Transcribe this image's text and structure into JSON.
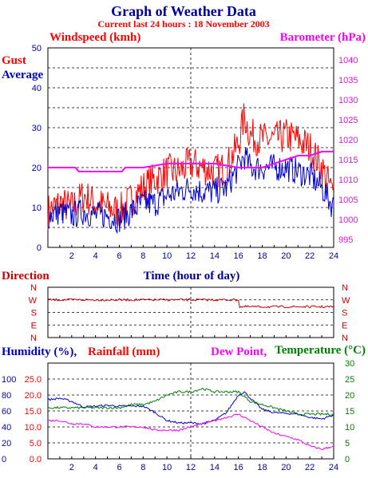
{
  "title": "Graph of Weather Data",
  "subtitle": "Current last 24 hours : 18 November 2003",
  "colors": {
    "red": "#ff0000",
    "blue": "#0000cc",
    "magenta": "#ff00ff",
    "green": "#008000",
    "darkblue": "#000099"
  },
  "chart_data": [
    {
      "type": "line",
      "title": "",
      "labels": {
        "left": "Windspeed (kmh)",
        "right": "Barometer (hPa)",
        "gust": "Gust",
        "average": "Average",
        "x": "Time (hour of day)"
      },
      "xlim": [
        0,
        24
      ],
      "ylim": [
        0,
        50
      ],
      "y2lim": [
        993,
        1043
      ],
      "x_ticks": [
        "2",
        "4",
        "6",
        "8",
        "10",
        "12",
        "14",
        "16",
        "18",
        "20",
        "22",
        "24"
      ],
      "y_ticks": [
        "0",
        "10",
        "20",
        "30",
        "40",
        "50"
      ],
      "y2_ticks": [
        "995",
        "1000",
        "1005",
        "1010",
        "1015",
        "1020",
        "1025",
        "1030",
        "1035",
        "1040"
      ],
      "series": [
        {
          "name": "Gust",
          "axis": "left",
          "color": "#ff0000",
          "x": [
            0,
            1,
            2,
            3,
            4,
            5,
            6,
            7,
            8,
            9,
            10,
            11,
            12,
            13,
            14,
            15,
            16,
            16.5,
            17,
            18,
            19,
            20,
            21,
            22,
            23,
            24
          ],
          "y": [
            9,
            11,
            10,
            13,
            11,
            10,
            9,
            12,
            15,
            17,
            19,
            19,
            21,
            20,
            19,
            20,
            26,
            33,
            28,
            27,
            27,
            28,
            27,
            25,
            20,
            13
          ]
        },
        {
          "name": "Average",
          "axis": "left",
          "color": "#0000cc",
          "x": [
            0,
            1,
            2,
            3,
            4,
            5,
            6,
            7,
            8,
            9,
            10,
            11,
            12,
            13,
            14,
            15,
            16,
            16.5,
            17,
            18,
            19,
            20,
            21,
            22,
            23,
            24
          ],
          "y": [
            8,
            9,
            8,
            9,
            8,
            8,
            7,
            9,
            11,
            11,
            13,
            14,
            15,
            14,
            14,
            15,
            20,
            23,
            20,
            20,
            20,
            20,
            19,
            18,
            15,
            10
          ]
        },
        {
          "name": "Barometer",
          "axis": "right",
          "color": "#ff00ff",
          "x": [
            0,
            2.3,
            2.6,
            3,
            6.2,
            6.5,
            8,
            10,
            12,
            13,
            14,
            16,
            18,
            19,
            20,
            21,
            22,
            23,
            24
          ],
          "y": [
            1013,
            1013,
            1012,
            1012,
            1012,
            1013,
            1013,
            1014,
            1014,
            1014,
            1014,
            1013,
            1013,
            1014,
            1015,
            1016,
            1016,
            1017,
            1017
          ]
        }
      ]
    },
    {
      "type": "line",
      "title": "",
      "labels": {
        "left": "Direction"
      },
      "xlim": [
        0,
        24
      ],
      "y_ticks": [
        "N",
        "W",
        "S",
        "E",
        "N"
      ],
      "series": [
        {
          "name": "Direction",
          "color": "#cc0000",
          "x": [
            0,
            4,
            8,
            12,
            15.5,
            16,
            20,
            24
          ],
          "y": [
            "W",
            "W",
            "W",
            "W",
            "W",
            "SW",
            "SW",
            "SW"
          ]
        }
      ]
    },
    {
      "type": "line",
      "title": "",
      "labels": {
        "humidity": "Humidity (%),",
        "rainfall": "Rainfall (mm)",
        "dewpoint": "Dew Point,",
        "temperature": "Temperature (°C)"
      },
      "xlim": [
        0,
        24
      ],
      "y_humidity_ticks": [
        "0",
        "20",
        "40",
        "60",
        "80",
        "100"
      ],
      "y_rain_ticks": [
        "0.0",
        "5.0",
        "10.0",
        "15.0",
        "20.0",
        "25.0"
      ],
      "y2_ticks": [
        "0",
        "5",
        "10",
        "15",
        "20",
        "25",
        "30"
      ],
      "x_ticks": [
        "2",
        "4",
        "6",
        "8",
        "10",
        "12",
        "14",
        "16",
        "18",
        "20",
        "22",
        "24"
      ],
      "series": [
        {
          "name": "Humidity",
          "axis": "humidity",
          "color": "#0000cc",
          "x": [
            0,
            1,
            2,
            3,
            4,
            5,
            6,
            7,
            8,
            9,
            10,
            11,
            12,
            13,
            14,
            15,
            16,
            16.5,
            17,
            18,
            19,
            20,
            21,
            22,
            23,
            24
          ],
          "y": [
            74,
            76,
            72,
            65,
            66,
            67,
            66,
            66,
            66,
            58,
            48,
            45,
            45,
            44,
            48,
            58,
            80,
            84,
            76,
            62,
            58,
            57,
            56,
            52,
            50,
            55
          ]
        },
        {
          "name": "Temperature",
          "axis": "temperature",
          "color": "#008000",
          "x": [
            0,
            1,
            2,
            3,
            4,
            5,
            6,
            7,
            8,
            9,
            10,
            11,
            12,
            13,
            14,
            15,
            16,
            17,
            18,
            19,
            20,
            21,
            22,
            23,
            24
          ],
          "y": [
            16,
            16,
            16,
            16,
            16,
            16,
            16,
            17,
            17,
            18,
            20,
            21,
            21,
            22,
            21,
            21,
            21,
            18,
            17,
            16,
            15,
            14,
            14,
            14,
            14
          ]
        },
        {
          "name": "Dew Point",
          "axis": "temperature",
          "color": "#ff00ff",
          "x": [
            0,
            1,
            2,
            3,
            4,
            5,
            6,
            7,
            8,
            9,
            10,
            11,
            12,
            13,
            14,
            15,
            16,
            17,
            18,
            19,
            20,
            21,
            22,
            23,
            24
          ],
          "y": [
            12,
            12,
            11,
            11,
            10,
            10,
            10,
            10,
            10,
            9,
            9,
            9,
            10,
            11,
            12,
            13,
            14,
            12,
            10,
            8,
            7,
            6,
            4,
            3,
            4
          ]
        },
        {
          "name": "Rainfall",
          "axis": "rainfall",
          "color": "#ff0000",
          "x": [
            0,
            24
          ],
          "y": [
            0,
            0
          ]
        }
      ]
    }
  ]
}
